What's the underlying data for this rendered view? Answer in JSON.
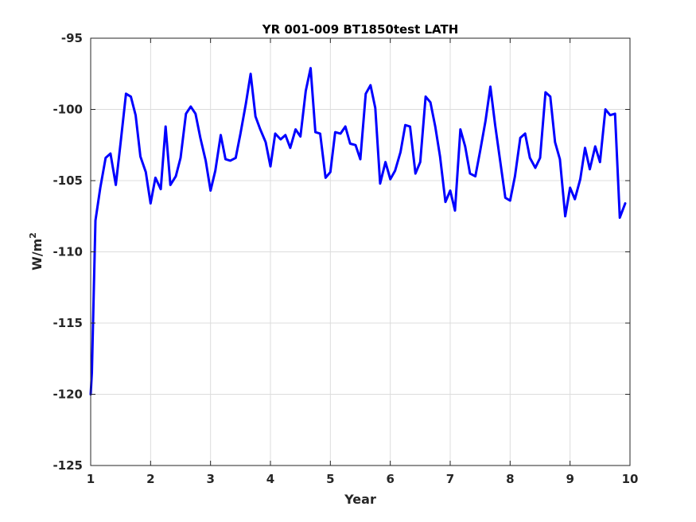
{
  "chart_data": {
    "type": "line",
    "title": "YR 001-009 BT1850test LATH",
    "xlabel": "Year",
    "ylabel": "W/m",
    "ylabel_superscript": "2",
    "xlim": [
      1,
      10
    ],
    "ylim": [
      -125,
      -95
    ],
    "xticks": [
      1,
      2,
      3,
      4,
      5,
      6,
      7,
      8,
      9,
      10
    ],
    "yticks": [
      -95,
      -100,
      -105,
      -110,
      -115,
      -120,
      -125
    ],
    "grid": true,
    "series": [
      {
        "color": "#0000ff",
        "x": [
          1.0,
          1.02,
          1.08,
          1.16,
          1.25,
          1.33,
          1.42,
          1.5,
          1.59,
          1.67,
          1.75,
          1.83,
          1.92,
          2.0,
          2.08,
          2.17,
          2.25,
          2.33,
          2.42,
          2.5,
          2.59,
          2.67,
          2.75,
          2.83,
          2.92,
          3.0,
          3.08,
          3.17,
          3.25,
          3.33,
          3.42,
          3.5,
          3.59,
          3.67,
          3.75,
          3.83,
          3.92,
          4.0,
          4.08,
          4.17,
          4.25,
          4.33,
          4.42,
          4.5,
          4.59,
          4.67,
          4.75,
          4.83,
          4.92,
          5.0,
          5.08,
          5.17,
          5.25,
          5.33,
          5.42,
          5.5,
          5.59,
          5.67,
          5.75,
          5.83,
          5.92,
          6.0,
          6.08,
          6.17,
          6.25,
          6.33,
          6.42,
          6.5,
          6.59,
          6.67,
          6.75,
          6.83,
          6.92,
          7.0,
          7.08,
          7.17,
          7.25,
          7.33,
          7.42,
          7.5,
          7.59,
          7.67,
          7.75,
          7.83,
          7.92,
          8.0,
          8.08,
          8.17,
          8.25,
          8.33,
          8.42,
          8.5,
          8.59,
          8.67,
          8.75,
          8.83,
          8.92,
          9.0,
          9.08,
          9.17,
          9.25,
          9.33,
          9.42,
          9.5,
          9.59,
          9.67,
          9.75,
          9.83,
          9.92
        ],
        "y": [
          -120.0,
          -118.5,
          -107.8,
          -105.5,
          -103.4,
          -103.1,
          -105.3,
          -102.3,
          -98.9,
          -99.1,
          -100.4,
          -103.3,
          -104.4,
          -106.6,
          -104.8,
          -105.6,
          -101.2,
          -105.3,
          -104.7,
          -103.4,
          -100.3,
          -99.8,
          -100.3,
          -102.0,
          -103.6,
          -105.7,
          -104.3,
          -101.8,
          -103.5,
          -103.6,
          -103.4,
          -101.7,
          -99.6,
          -97.5,
          -100.5,
          -101.4,
          -102.3,
          -104.0,
          -101.7,
          -102.1,
          -101.8,
          -102.7,
          -101.4,
          -101.9,
          -98.7,
          -97.1,
          -101.6,
          -101.7,
          -104.8,
          -104.4,
          -101.6,
          -101.7,
          -101.2,
          -102.4,
          -102.5,
          -103.5,
          -98.9,
          -98.3,
          -99.9,
          -105.2,
          -103.7,
          -104.9,
          -104.3,
          -103.0,
          -101.1,
          -101.2,
          -104.5,
          -103.7,
          -99.1,
          -99.5,
          -101.2,
          -103.3,
          -106.5,
          -105.7,
          -107.1,
          -101.4,
          -102.6,
          -104.5,
          -104.7,
          -102.9,
          -100.8,
          -98.4,
          -101.1,
          -103.5,
          -106.2,
          -106.4,
          -104.7,
          -102.0,
          -101.7,
          -103.4,
          -104.1,
          -103.4,
          -98.8,
          -99.1,
          -102.3,
          -103.5,
          -107.5,
          -105.5,
          -106.3,
          -104.9,
          -102.7,
          -104.2,
          -102.6,
          -103.7,
          -100.0,
          -100.4,
          -100.3,
          -107.6,
          -106.6
        ]
      }
    ]
  }
}
